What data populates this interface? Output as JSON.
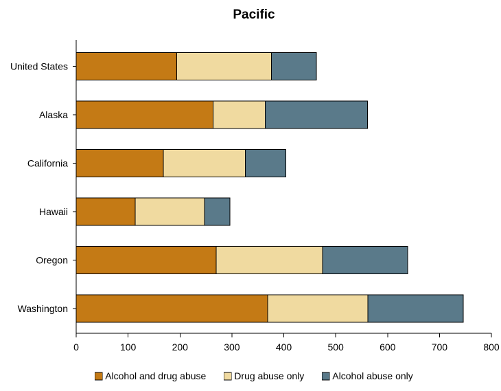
{
  "chart_data": {
    "type": "bar",
    "orientation": "horizontal",
    "stacked": true,
    "title": "Pacific",
    "xlabel": "",
    "ylabel": "",
    "categories": [
      "United States",
      "Alaska",
      "California",
      "Hawaii",
      "Oregon",
      "Washington"
    ],
    "series": [
      {
        "name": "Alcohol and drug abuse",
        "color": "#C47A15",
        "values": [
          194,
          264,
          168,
          114,
          270,
          369
        ]
      },
      {
        "name": "Drug abuse only",
        "color": "#F0DAA0",
        "values": [
          182,
          100,
          158,
          133,
          205,
          193
        ]
      },
      {
        "name": "Alcohol abuse only",
        "color": "#5A7A8A",
        "values": [
          87,
          197,
          78,
          49,
          164,
          184
        ]
      }
    ],
    "xlim": [
      0,
      800
    ],
    "xticks": [
      0,
      100,
      200,
      300,
      400,
      500,
      600,
      700,
      800
    ],
    "grid": false,
    "legend_position": "bottom"
  }
}
